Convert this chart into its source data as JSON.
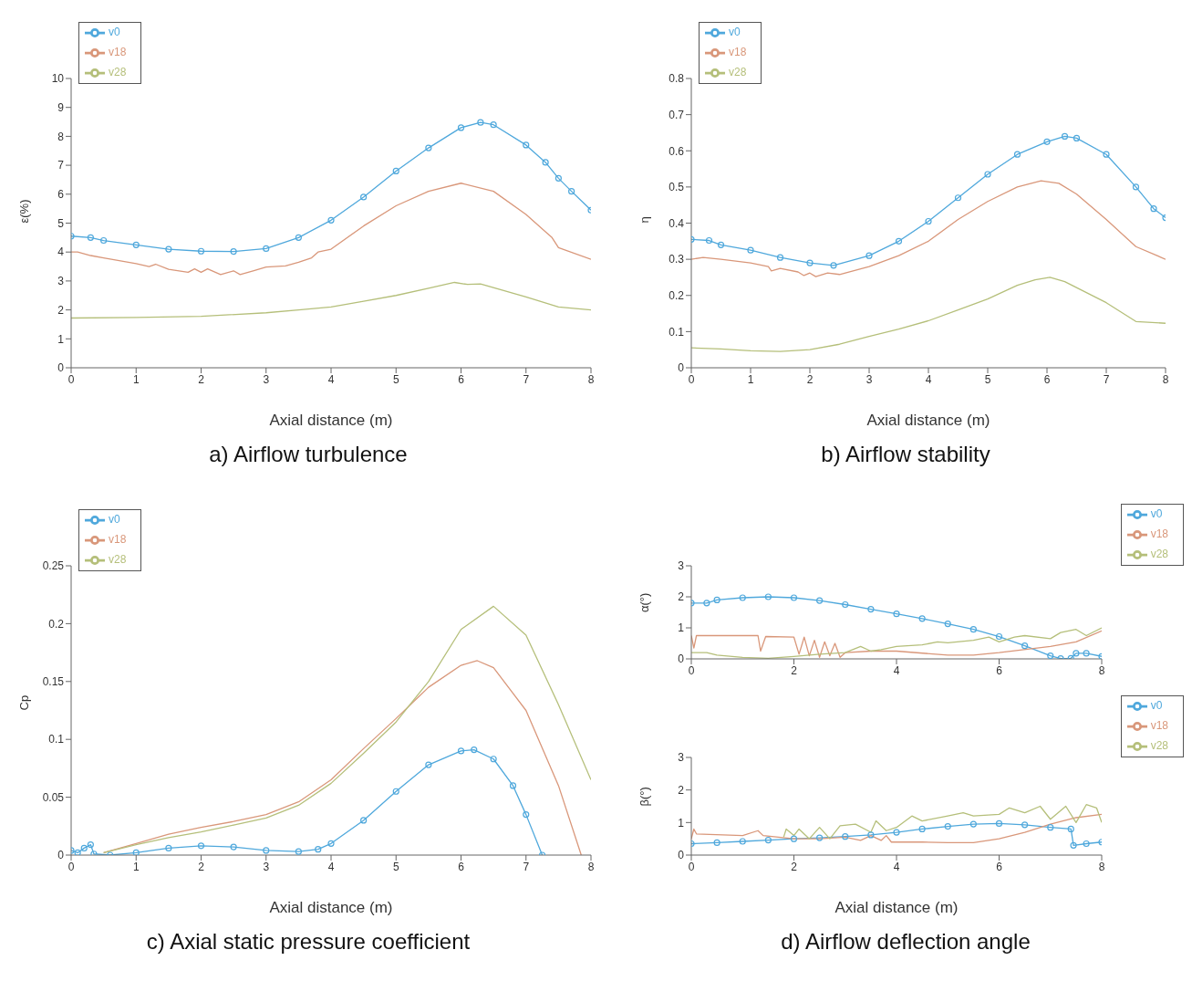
{
  "chart_data": [
    {
      "type": "line",
      "title": "a) Airflow turbulence",
      "xlabel": "Axial distance (m)",
      "ylabel": "ε(%)",
      "xlim": [
        0,
        8
      ],
      "xticks": [
        0,
        1,
        2,
        3,
        4,
        5,
        6,
        7,
        8
      ],
      "ylim": [
        0,
        10
      ],
      "yticks": [
        0,
        1,
        2,
        3,
        4,
        5,
        6,
        7,
        8,
        9,
        10
      ],
      "legend": "top left",
      "series": [
        {
          "name": "v0",
          "color": "#4fa8dc",
          "marker": "circle",
          "x": [
            0,
            0.3,
            0.5,
            1,
            1.5,
            2,
            2.5,
            3,
            3.5,
            4,
            4.5,
            5,
            5.5,
            6,
            6.3,
            6.5,
            7,
            7.3,
            7.5,
            7.7,
            8
          ],
          "values": [
            4.55,
            4.5,
            4.4,
            4.25,
            4.1,
            4.03,
            4.02,
            4.12,
            4.5,
            5.1,
            5.9,
            6.8,
            7.6,
            8.3,
            8.48,
            8.4,
            7.7,
            7.1,
            6.55,
            6.1,
            5.45
          ]
        },
        {
          "name": "v18",
          "color": "#d9977a",
          "marker": "none",
          "x": [
            0,
            0.1,
            0.3,
            0.5,
            1,
            1.2,
            1.3,
            1.5,
            1.8,
            1.9,
            2,
            2.1,
            2.3,
            2.5,
            2.6,
            2.8,
            3,
            3.3,
            3.5,
            3.7,
            3.8,
            4,
            4.5,
            5,
            5.5,
            6,
            6.5,
            7,
            7.4,
            7.5,
            8
          ],
          "values": [
            4.0,
            4.0,
            3.88,
            3.8,
            3.6,
            3.5,
            3.58,
            3.4,
            3.3,
            3.42,
            3.3,
            3.42,
            3.22,
            3.35,
            3.22,
            3.35,
            3.48,
            3.52,
            3.65,
            3.8,
            4.0,
            4.1,
            4.9,
            5.6,
            6.1,
            6.38,
            6.1,
            5.3,
            4.5,
            4.15,
            3.75
          ]
        },
        {
          "name": "v28",
          "color": "#b5bf7a",
          "marker": "none",
          "x": [
            0,
            1,
            2,
            3,
            3.5,
            4,
            4.5,
            5,
            5.5,
            5.9,
            6.1,
            6.3,
            7,
            7.5,
            8
          ],
          "values": [
            1.72,
            1.74,
            1.78,
            1.9,
            2.0,
            2.1,
            2.3,
            2.5,
            2.75,
            2.95,
            2.88,
            2.9,
            2.45,
            2.1,
            2.0
          ]
        }
      ]
    },
    {
      "type": "line",
      "title": "b) Airflow stability",
      "xlabel": "Axial distance (m)",
      "ylabel": "η",
      "xlim": [
        0,
        8
      ],
      "xticks": [
        0,
        1,
        2,
        3,
        4,
        5,
        6,
        7,
        8
      ],
      "ylim": [
        0,
        0.8
      ],
      "yticks": [
        0,
        0.1,
        0.2,
        0.3,
        0.4,
        0.5,
        0.6,
        0.7,
        0.8
      ],
      "legend": "top left",
      "series": [
        {
          "name": "v0",
          "color": "#4fa8dc",
          "marker": "circle",
          "x": [
            0,
            0.3,
            0.5,
            1,
            1.5,
            2,
            2.4,
            3,
            3.5,
            4,
            4.5,
            5,
            5.5,
            6,
            6.3,
            6.5,
            7,
            7.5,
            7.8,
            8
          ],
          "values": [
            0.355,
            0.352,
            0.34,
            0.325,
            0.305,
            0.29,
            0.283,
            0.31,
            0.35,
            0.405,
            0.47,
            0.535,
            0.59,
            0.625,
            0.64,
            0.635,
            0.59,
            0.5,
            0.44,
            0.415
          ]
        },
        {
          "name": "v18",
          "color": "#d9977a",
          "marker": "none",
          "x": [
            0,
            0.2,
            0.5,
            1,
            1.3,
            1.35,
            1.5,
            1.8,
            1.9,
            2,
            2.1,
            2.3,
            2.5,
            3,
            3.5,
            4,
            4.5,
            5,
            5.5,
            5.9,
            6.2,
            6.5,
            7,
            7.5,
            8
          ],
          "values": [
            0.3,
            0.305,
            0.3,
            0.29,
            0.28,
            0.268,
            0.275,
            0.265,
            0.255,
            0.262,
            0.252,
            0.262,
            0.258,
            0.28,
            0.31,
            0.35,
            0.41,
            0.46,
            0.5,
            0.517,
            0.51,
            0.48,
            0.41,
            0.335,
            0.3
          ]
        },
        {
          "name": "v28",
          "color": "#b5bf7a",
          "marker": "none",
          "x": [
            0,
            0.5,
            1,
            1.5,
            2,
            2.5,
            3,
            3.5,
            4,
            4.5,
            5,
            5.5,
            5.8,
            6.05,
            6.3,
            7,
            7.5,
            8
          ],
          "values": [
            0.055,
            0.052,
            0.047,
            0.045,
            0.05,
            0.065,
            0.087,
            0.107,
            0.13,
            0.16,
            0.19,
            0.228,
            0.243,
            0.25,
            0.238,
            0.18,
            0.128,
            0.123
          ]
        }
      ]
    },
    {
      "type": "line",
      "title": "c) Axial static pressure coefficient",
      "xlabel": "Axial distance (m)",
      "ylabel": "Cp",
      "xlim": [
        0,
        8
      ],
      "xticks": [
        0,
        1,
        2,
        3,
        4,
        5,
        6,
        7,
        8
      ],
      "ylim": [
        0,
        0.25
      ],
      "yticks": [
        0,
        0.05,
        0.1,
        0.15,
        0.2,
        0.25
      ],
      "legend": "top left",
      "series": [
        {
          "name": "v0",
          "color": "#4fa8dc",
          "marker": "circle",
          "x": [
            0,
            0.1,
            0.2,
            0.3,
            0.35,
            0.6,
            1,
            1.5,
            2,
            2.5,
            3,
            3.5,
            3.8,
            4,
            4.5,
            5,
            5.5,
            6,
            6.2,
            6.5,
            6.8,
            7,
            7.25
          ],
          "values": [
            0.004,
            0.002,
            0.006,
            0.009,
            0.001,
            0,
            0.002,
            0.006,
            0.008,
            0.007,
            0.004,
            0.003,
            0.005,
            0.01,
            0.03,
            0.055,
            0.078,
            0.09,
            0.091,
            0.083,
            0.06,
            0.035,
            0
          ]
        },
        {
          "name": "v18",
          "color": "#d9977a",
          "marker": "none",
          "x": [
            0.5,
            1,
            1.5,
            2,
            2.5,
            3,
            3.5,
            4,
            4.5,
            5,
            5.5,
            6,
            6.25,
            6.5,
            7,
            7.5,
            7.85
          ],
          "values": [
            0.002,
            0.01,
            0.018,
            0.024,
            0.029,
            0.035,
            0.046,
            0.065,
            0.092,
            0.118,
            0.145,
            0.164,
            0.168,
            0.162,
            0.125,
            0.06,
            0
          ]
        },
        {
          "name": "v28",
          "color": "#b5bf7a",
          "marker": "none",
          "x": [
            0.5,
            1,
            1.5,
            2,
            2.5,
            3,
            3.5,
            4,
            4.5,
            5,
            5.5,
            6,
            6.5,
            7,
            7.5,
            8
          ],
          "values": [
            0.002,
            0.009,
            0.015,
            0.02,
            0.026,
            0.032,
            0.043,
            0.062,
            0.088,
            0.115,
            0.15,
            0.195,
            0.215,
            0.19,
            0.13,
            0.065
          ]
        }
      ]
    },
    {
      "type": "line",
      "ylabel": "α(°)",
      "xlim": [
        0,
        8
      ],
      "xticks": [
        0,
        2,
        4,
        6,
        8
      ],
      "ylim": [
        0,
        3
      ],
      "yticks": [
        0,
        1,
        2,
        3
      ],
      "legend": "right",
      "series": [
        {
          "name": "v0",
          "color": "#4fa8dc",
          "marker": "circle",
          "x": [
            0,
            0.3,
            0.5,
            1,
            1.5,
            2,
            2.5,
            3,
            3.5,
            4,
            4.5,
            5,
            5.5,
            6,
            6.5,
            7,
            7.2,
            7.4,
            7.5,
            7.7,
            8
          ],
          "values": [
            1.8,
            1.8,
            1.9,
            1.97,
            2.0,
            1.97,
            1.88,
            1.75,
            1.6,
            1.45,
            1.3,
            1.13,
            0.95,
            0.72,
            0.42,
            0.1,
            0.01,
            0.02,
            0.18,
            0.18,
            0.08
          ]
        },
        {
          "name": "v18",
          "color": "#d9977a",
          "marker": "none",
          "x": [
            0,
            0.05,
            0.1,
            1.3,
            1.35,
            1.45,
            2,
            2.1,
            2.2,
            2.3,
            2.4,
            2.5,
            2.6,
            2.7,
            2.8,
            2.9,
            3,
            3.5,
            4,
            5,
            5.5,
            6,
            7,
            7.5,
            8
          ],
          "values": [
            0.75,
            0.35,
            0.75,
            0.75,
            0.25,
            0.72,
            0.7,
            0.15,
            0.7,
            0.1,
            0.6,
            0.05,
            0.55,
            0.1,
            0.5,
            0.05,
            0.2,
            0.25,
            0.25,
            0.12,
            0.12,
            0.2,
            0.4,
            0.55,
            0.9
          ]
        },
        {
          "name": "v28",
          "color": "#b5bf7a",
          "marker": "none",
          "x": [
            0,
            0.3,
            0.5,
            1,
            1.5,
            2,
            2.5,
            3,
            3.3,
            3.5,
            3.7,
            4,
            4.5,
            4.8,
            5,
            5.5,
            5.8,
            6,
            6.3,
            6.5,
            7,
            7.2,
            7.5,
            7.7,
            8
          ],
          "values": [
            0.2,
            0.2,
            0.12,
            0.05,
            0.02,
            0.08,
            0.15,
            0.2,
            0.4,
            0.25,
            0.3,
            0.4,
            0.45,
            0.55,
            0.52,
            0.6,
            0.7,
            0.55,
            0.7,
            0.75,
            0.65,
            0.85,
            0.95,
            0.75,
            1.0
          ]
        }
      ]
    },
    {
      "type": "line",
      "title": "d) Airflow deflection angle",
      "xlabel": "Axial distance (m)",
      "ylabel": "β(°)",
      "xlim": [
        0,
        8
      ],
      "xticks": [
        0,
        2,
        4,
        6,
        8
      ],
      "ylim": [
        0,
        3
      ],
      "yticks": [
        0,
        1,
        2,
        3
      ],
      "legend": "right",
      "series": [
        {
          "name": "v0",
          "color": "#4fa8dc",
          "marker": "circle",
          "x": [
            0,
            0.5,
            1,
            1.5,
            2,
            2.5,
            3,
            3.5,
            4,
            4.5,
            5,
            5.5,
            6,
            6.5,
            7,
            7.4,
            7.45,
            7.7,
            8
          ],
          "values": [
            0.35,
            0.38,
            0.42,
            0.46,
            0.5,
            0.53,
            0.57,
            0.62,
            0.7,
            0.8,
            0.88,
            0.95,
            0.97,
            0.93,
            0.85,
            0.8,
            0.3,
            0.35,
            0.4
          ]
        },
        {
          "name": "v18",
          "color": "#d9977a",
          "marker": "none",
          "x": [
            0,
            0.05,
            0.1,
            1,
            1.3,
            1.4,
            2,
            2.5,
            3,
            3.3,
            3.5,
            3.7,
            3.8,
            3.9,
            4.5,
            5,
            5.5,
            6,
            6.5,
            7,
            7.5,
            8
          ],
          "values": [
            0.5,
            0.8,
            0.65,
            0.6,
            0.75,
            0.6,
            0.5,
            0.5,
            0.55,
            0.45,
            0.6,
            0.45,
            0.6,
            0.4,
            0.4,
            0.38,
            0.38,
            0.5,
            0.7,
            0.95,
            1.15,
            1.25
          ]
        },
        {
          "name": "v28",
          "color": "#b5bf7a",
          "marker": "none",
          "x": [
            1.8,
            1.85,
            2,
            2.1,
            2.3,
            2.5,
            2.7,
            2.9,
            3.2,
            3.5,
            3.6,
            3.8,
            4,
            4.3,
            4.5,
            5,
            5.3,
            5.5,
            6,
            6.2,
            6.5,
            6.8,
            7,
            7.3,
            7.5,
            7.7,
            7.9,
            8
          ],
          "values": [
            0.55,
            0.8,
            0.6,
            0.8,
            0.5,
            0.85,
            0.5,
            0.9,
            0.95,
            0.7,
            1.05,
            0.75,
            0.85,
            1.2,
            1.05,
            1.2,
            1.3,
            1.2,
            1.25,
            1.45,
            1.3,
            1.5,
            1.1,
            1.5,
            1.0,
            1.55,
            1.45,
            1.0
          ]
        }
      ]
    }
  ]
}
